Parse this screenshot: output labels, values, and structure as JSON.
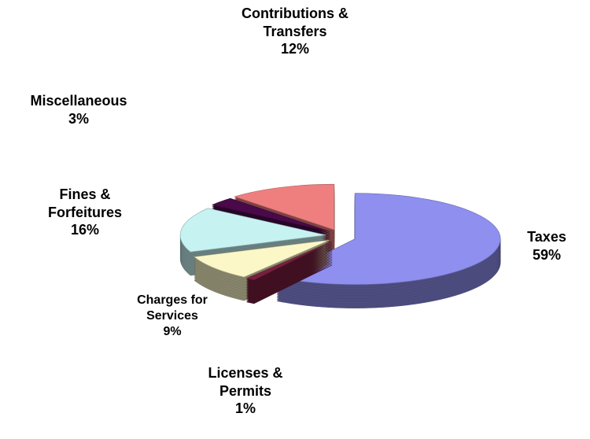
{
  "chart_data": {
    "type": "pie",
    "categories": [
      "Taxes",
      "Licenses & Permits",
      "Charges for Services",
      "Fines & Forfeitures",
      "Miscellaneous",
      "Contributions & Transfers"
    ],
    "values": [
      59,
      1,
      9,
      16,
      3,
      12
    ],
    "value_labels": [
      "59%",
      "1%",
      "9%",
      "16%",
      "3%",
      "12%"
    ],
    "colors": [
      "#8f8fef",
      "#7a1f3f",
      "#fbf7c7",
      "#c7f2f2",
      "#4a0a4a",
      "#ef7f7f"
    ]
  }
}
